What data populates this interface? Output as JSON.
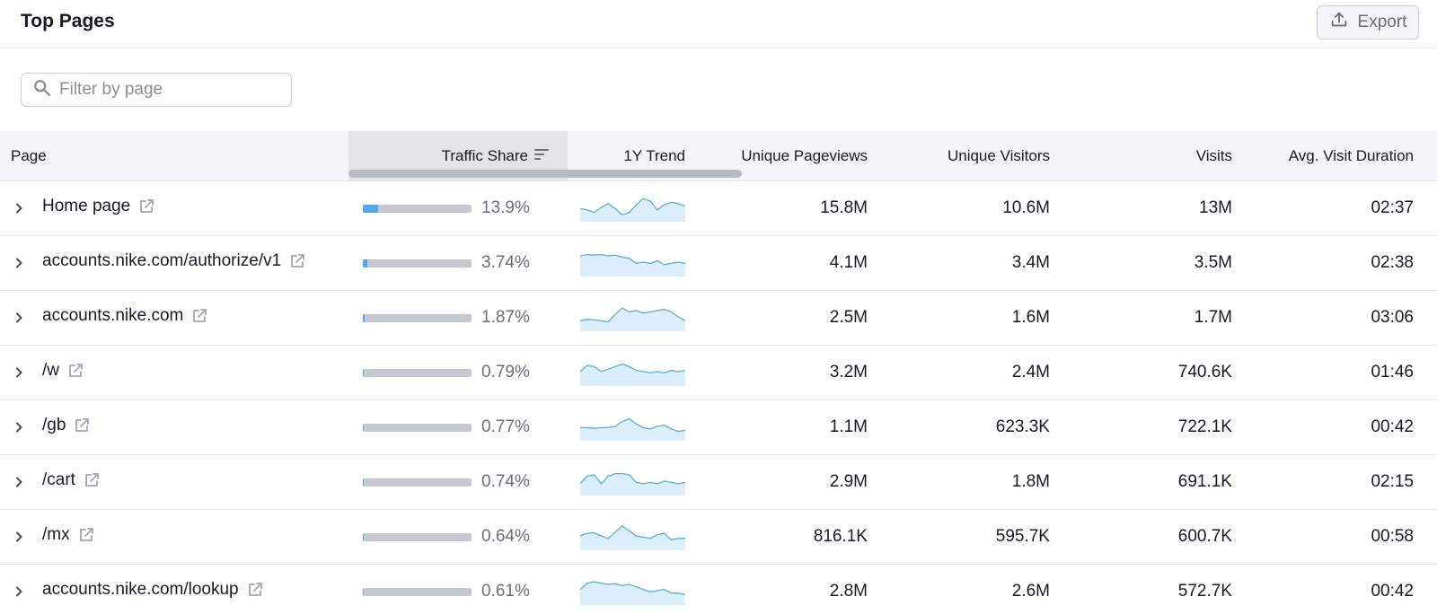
{
  "header": {
    "title": "Top Pages",
    "export_label": "Export"
  },
  "filter": {
    "placeholder": "Filter by page",
    "value": ""
  },
  "columns": {
    "page": "Page",
    "traffic_share": "Traffic Share",
    "trend": "1Y Trend",
    "unique_pageviews": "Unique Pageviews",
    "unique_visitors": "Unique Visitors",
    "visits": "Visits",
    "avg_visit_duration": "Avg. Visit Duration"
  },
  "colors": {
    "bar_fill": "#54a8e8",
    "bar_track": "#c5c8d0",
    "spark_line": "#5aaed6",
    "spark_area": "#dceefb"
  },
  "rows": [
    {
      "page": "Home page",
      "traffic_share": "13.9%",
      "share_value": 13.9,
      "unique_pageviews": "15.8M",
      "unique_visitors": "10.6M",
      "visits": "13M",
      "avg_visit_duration": "02:37"
    },
    {
      "page": "accounts.nike.com/authorize/v1",
      "traffic_share": "3.74%",
      "share_value": 3.74,
      "unique_pageviews": "4.1M",
      "unique_visitors": "3.4M",
      "visits": "3.5M",
      "avg_visit_duration": "02:38"
    },
    {
      "page": "accounts.nike.com",
      "traffic_share": "1.87%",
      "share_value": 1.87,
      "unique_pageviews": "2.5M",
      "unique_visitors": "1.6M",
      "visits": "1.7M",
      "avg_visit_duration": "03:06"
    },
    {
      "page": "/w",
      "traffic_share": "0.79%",
      "share_value": 0.79,
      "unique_pageviews": "3.2M",
      "unique_visitors": "2.4M",
      "visits": "740.6K",
      "avg_visit_duration": "01:46"
    },
    {
      "page": "/gb",
      "traffic_share": "0.77%",
      "share_value": 0.77,
      "unique_pageviews": "1.1M",
      "unique_visitors": "623.3K",
      "visits": "722.1K",
      "avg_visit_duration": "00:42"
    },
    {
      "page": "/cart",
      "traffic_share": "0.74%",
      "share_value": 0.74,
      "unique_pageviews": "2.9M",
      "unique_visitors": "1.8M",
      "visits": "691.1K",
      "avg_visit_duration": "02:15"
    },
    {
      "page": "/mx",
      "traffic_share": "0.64%",
      "share_value": 0.64,
      "unique_pageviews": "816.1K",
      "unique_visitors": "595.7K",
      "visits": "600.7K",
      "avg_visit_duration": "00:58"
    },
    {
      "page": "accounts.nike.com/lookup",
      "traffic_share": "0.61%",
      "share_value": 0.61,
      "unique_pageviews": "2.8M",
      "unique_visitors": "2.6M",
      "visits": "572.7K",
      "avg_visit_duration": "00:42"
    }
  ]
}
